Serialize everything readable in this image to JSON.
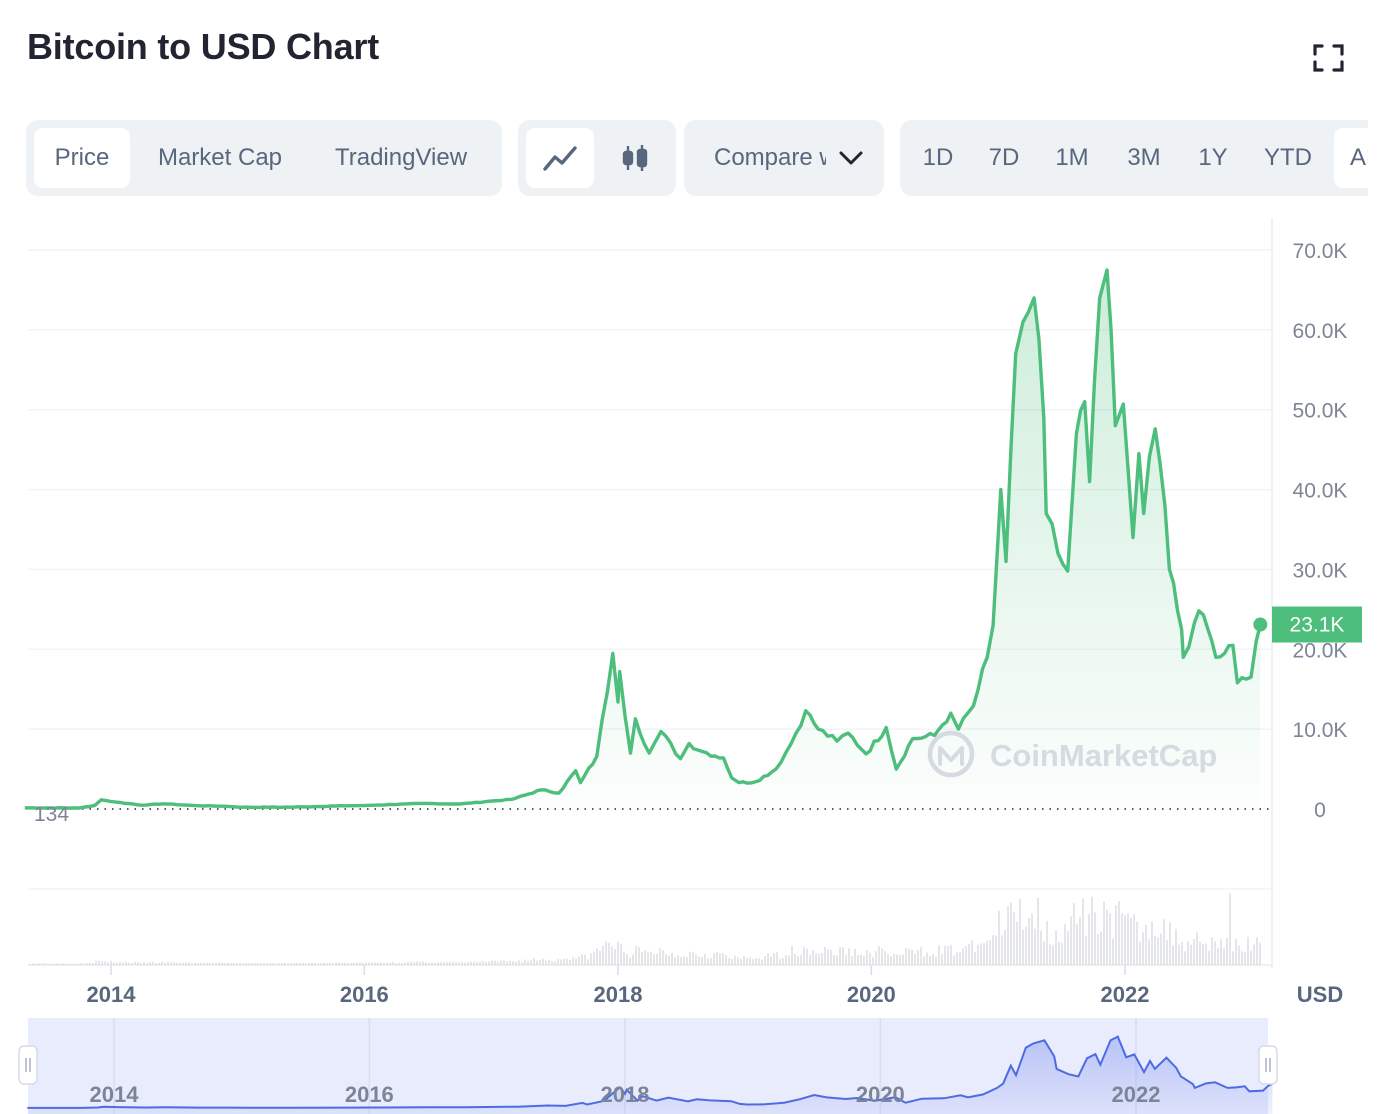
{
  "header": {
    "title": "Bitcoin to USD Chart"
  },
  "view_tabs": [
    {
      "label": "Price",
      "active": true
    },
    {
      "label": "Market Cap",
      "active": false
    },
    {
      "label": "TradingView",
      "active": false
    }
  ],
  "chart_type_toggle": {
    "options": [
      "line-chart-icon",
      "candlestick-icon"
    ],
    "active": "line-chart-icon"
  },
  "compare": {
    "label": "Compare with"
  },
  "time_ranges": [
    "1D",
    "7D",
    "1M",
    "3M",
    "1Y",
    "YTD",
    "ALL"
  ],
  "watermark": "CoinMarketCap",
  "currency_label": "USD",
  "current_price_badge": "23.1K",
  "min_price_label": "134",
  "colors": {
    "line": "#4dbe7c",
    "accent_badge": "#4dbe7c",
    "volume": "#c9ccd6",
    "navigator_line": "#4f6be3",
    "navigator_fill": "#e9ecfd",
    "text_muted": "#58667e"
  },
  "chart_data": {
    "type": "area",
    "title": "Bitcoin to USD Chart",
    "xlabel": "",
    "ylabel": "USD",
    "x_ticks": [
      "2014",
      "2016",
      "2018",
      "2020",
      "2022"
    ],
    "y_ticks": [
      "0",
      "10.0K",
      "20.0K",
      "30.0K",
      "40.0K",
      "50.0K",
      "60.0K",
      "70.0K"
    ],
    "ylim": [
      0,
      70000
    ],
    "grid": true,
    "legend": "none",
    "series": [
      {
        "x": [
          "2013-04-28",
          "2013-10-01",
          "2013-11-15",
          "2013-12-04",
          "2014-01-15",
          "2014-04-01",
          "2014-06-01",
          "2014-09-01",
          "2014-12-01",
          "2015-01-15",
          "2015-06-01",
          "2015-11-04",
          "2016-01-01",
          "2016-06-15",
          "2016-10-01",
          "2017-01-03",
          "2017-03-01",
          "2017-05-25",
          "2017-07-15",
          "2017-09-01",
          "2017-09-15",
          "2017-11-01",
          "2017-12-17",
          "2018-01-01",
          "2018-01-06",
          "2018-02-06",
          "2018-02-20",
          "2018-04-01",
          "2018-05-05",
          "2018-06-30",
          "2018-07-25",
          "2018-09-01",
          "2018-11-01",
          "2018-11-25",
          "2018-12-15",
          "2019-02-01",
          "2019-04-01",
          "2019-05-15",
          "2019-06-26",
          "2019-08-01",
          "2019-09-24",
          "2019-10-26",
          "2019-12-17",
          "2020-02-13",
          "2020-03-13",
          "2020-04-29",
          "2020-07-01",
          "2020-08-17",
          "2020-09-08",
          "2020-10-21",
          "2020-11-30",
          "2020-12-17",
          "2021-01-08",
          "2021-01-23",
          "2021-02-20",
          "2021-03-13",
          "2021-04-14",
          "2021-05-12",
          "2021-05-19",
          "2021-06-22",
          "2021-07-20",
          "2021-08-14",
          "2021-09-07",
          "2021-09-21",
          "2021-10-20",
          "2021-11-10",
          "2021-12-04",
          "2021-12-27",
          "2022-01-24",
          "2022-02-10",
          "2022-02-24",
          "2022-03-29",
          "2022-04-26",
          "2022-05-09",
          "2022-06-13",
          "2022-06-18",
          "2022-07-20",
          "2022-08-15",
          "2022-09-20",
          "2022-10-15",
          "2022-11-08",
          "2022-11-21",
          "2022-12-30",
          "2023-01-14",
          "2023-01-26"
        ],
        "values": [
          134,
          125,
          450,
          1150,
          870,
          480,
          650,
          420,
          340,
          220,
          230,
          400,
          430,
          700,
          620,
          1000,
          1200,
          2400,
          2000,
          4800,
          3300,
          6600,
          19500,
          13400,
          17200,
          7000,
          11300,
          7000,
          9700,
          6300,
          8200,
          7200,
          6400,
          3900,
          3300,
          3400,
          5000,
          8200,
          12300,
          10000,
          8500,
          9500,
          6900,
          10200,
          5000,
          8800,
          9200,
          12000,
          10000,
          12900,
          19000,
          23000,
          40000,
          31000,
          57000,
          61000,
          64000,
          49000,
          37000,
          32000,
          29800,
          47000,
          51000,
          41000,
          64000,
          67500,
          48000,
          50700,
          34000,
          44500,
          37000,
          47600,
          38000,
          30000,
          22500,
          19000,
          23300,
          24300,
          19000,
          19500,
          20500,
          15800,
          16500,
          21000,
          23100
        ]
      }
    ]
  },
  "navigator": {
    "x_ticks": [
      "2014",
      "2016",
      "2018",
      "2020",
      "2022"
    ]
  }
}
